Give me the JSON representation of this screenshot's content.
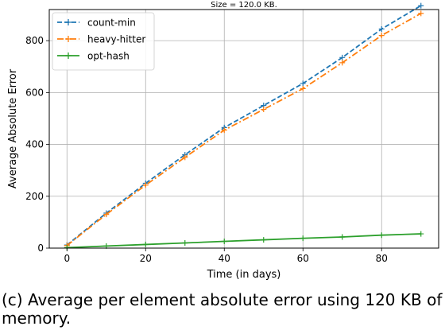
{
  "caption": "(c) Average per element absolute error using 120 KB of memory.",
  "chart_data": {
    "type": "line",
    "title": "Size = 120.0 KB.",
    "xlabel": "Time (in days)",
    "ylabel": "Average Absolute Error",
    "xlim": [
      -4.5,
      94.5
    ],
    "ylim": [
      0,
      920
    ],
    "xticks": [
      0,
      20,
      40,
      60,
      80
    ],
    "yticks": [
      0,
      200,
      400,
      600,
      800
    ],
    "grid": true,
    "legend_position": "upper left",
    "x": [
      0,
      10,
      20,
      30,
      40,
      50,
      60,
      70,
      80,
      90
    ],
    "series": [
      {
        "name": "count-min",
        "color": "#1f77b4",
        "dash": "dashed",
        "marker": "plus",
        "values": [
          12,
          135,
          250,
          360,
          465,
          550,
          635,
          735,
          845,
          935
        ]
      },
      {
        "name": "heavy-hitter",
        "color": "#ff7f0e",
        "dash": "dashdot",
        "marker": "plus",
        "values": [
          10,
          130,
          243,
          350,
          455,
          535,
          615,
          715,
          820,
          905
        ]
      },
      {
        "name": "opt-hash",
        "color": "#2ca02c",
        "dash": "solid",
        "marker": "plus",
        "values": [
          2,
          8,
          14,
          20,
          26,
          32,
          38,
          43,
          50,
          55
        ]
      }
    ]
  }
}
